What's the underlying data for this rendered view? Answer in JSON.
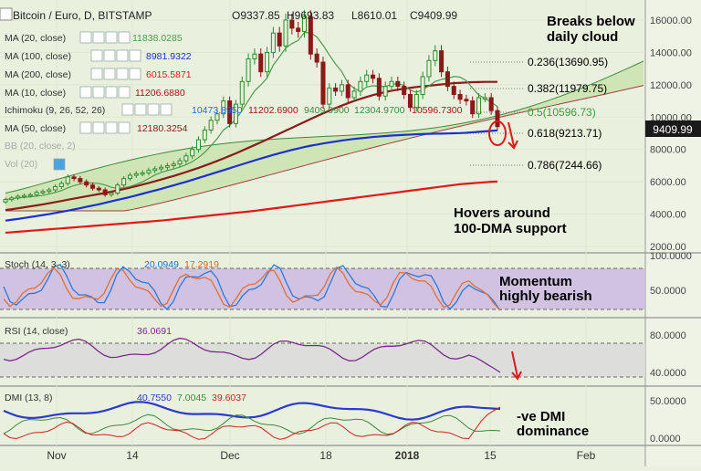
{
  "header": {
    "symbol": "Bitcoin / Euro, D, BITSTAMP",
    "ohlc": {
      "open": "O9337.85",
      "high": "H9693.83",
      "low": "L8610.01",
      "close": "C9409.99"
    }
  },
  "legend_main": [
    {
      "label": "MA (20, close)",
      "value": "11838.0285",
      "color": "#4f9a4f"
    },
    {
      "label": "MA (100, close)",
      "value": "8981.9322",
      "color": "#1e2fd0"
    },
    {
      "label": "MA (200, close)",
      "value": "6015.5871",
      "color": "#d02020"
    },
    {
      "label": "MA (10, close)",
      "value": "11206.6880",
      "color": "#a01818"
    },
    {
      "label": "Ichimoku (9, 26, 52, 26)",
      "value": "10473.8950",
      "value2": "11202.6900",
      "value3": "9409.9900",
      "value4": "12304.9700",
      "value5": "10596.7300"
    },
    {
      "label": "MA (50, close)",
      "value": "12180.3254",
      "color": "#8b1a1a"
    },
    {
      "label": "BB (20, close, 2)",
      "value": ""
    },
    {
      "label": "Vol (20)",
      "value": ""
    }
  ],
  "price_badge": "9409.99",
  "annotations": {
    "breaks": [
      "Breaks below",
      "daily cloud"
    ],
    "hovers": [
      "Hovers around",
      "100-DMA support"
    ],
    "momentum": [
      "Momentum",
      "highly bearish"
    ],
    "dmi": [
      "-ve DMI",
      "dominance"
    ]
  },
  "fib_levels": [
    {
      "label": "0.236(13690.95)",
      "color": "#000000"
    },
    {
      "label": "0.382(11979.75)",
      "color": "#000000"
    },
    {
      "label": "0.5(10596.73)",
      "color": "#3c9a3c"
    },
    {
      "label": "0.618(9213.71)",
      "color": "#000000"
    },
    {
      "label": "0.786(7244.66)",
      "color": "#000000"
    }
  ],
  "stoch": {
    "label": "Stoch (14, 3, 3)",
    "v1": "20.0949",
    "v2": "17.2919",
    "ticks": [
      "100.0000",
      "50.0000"
    ]
  },
  "rsi": {
    "label": "RSI (14, close)",
    "value": "36.0691",
    "ticks": [
      "80.0000",
      "40.0000"
    ]
  },
  "dmi_panel": {
    "label": "DMI (13, 8)",
    "v1": "40.7550",
    "v2": "7.0045",
    "v3": "39.6037",
    "ticks": [
      "50.0000",
      "0.0000"
    ]
  },
  "colors": {
    "background": "#e9f0dd",
    "candle_up": "#2e8b2e",
    "candle_down": "#8a1a1a",
    "ma100": "#1e2fd0",
    "ma200": "#e01818",
    "ma50": "#8b1a1a",
    "ma20": "#4f9a4f",
    "cloud": "#c5e2a7",
    "stoch_band": "#cdbde0",
    "rsi_band": "#dcdcdc",
    "annotation_arrow": "#e01818"
  },
  "chart_data": [
    {
      "type": "candlestick",
      "title": "Bitcoin / Euro, D, BITSTAMP",
      "x_tick_labels": [
        "Nov",
        "14",
        "Dec",
        "18",
        "2018",
        "15",
        "Feb"
      ],
      "y_tick_labels": [
        "16000.00",
        "14000.00",
        "12000.00",
        "10000.00",
        "8000.00",
        "6000.00",
        "4000.00",
        "2000.00"
      ],
      "ylim": [
        2000,
        17000
      ],
      "candles_close": [
        4900,
        5000,
        5100,
        5150,
        5200,
        5350,
        5400,
        5500,
        5700,
        5900,
        6300,
        6200,
        6000,
        5800,
        5600,
        5500,
        5200,
        5300,
        5800,
        6200,
        6400,
        6500,
        6550,
        6700,
        6800,
        6900,
        7000,
        7100,
        7300,
        7600,
        8000,
        8600,
        9200,
        9800,
        10200,
        11000,
        9600,
        10800,
        12200,
        13600,
        13900,
        12800,
        14000,
        15200,
        14400,
        16000,
        15500,
        15300,
        16200,
        13900,
        13400,
        10800,
        11800,
        11600,
        12000,
        11200,
        11600,
        12200,
        12600,
        12400,
        11300,
        11900,
        12200,
        11900,
        11400,
        10600,
        11400,
        12500,
        13500,
        14100,
        12800,
        11900,
        11400,
        11100,
        11000,
        10200,
        11200,
        11200,
        10400,
        9410
      ],
      "series": [
        {
          "name": "MA (100, close)",
          "values": [
            3600,
            3650,
            3700,
            3760,
            3820,
            3880,
            3940,
            4000,
            4070,
            4140,
            4210,
            4290,
            4370,
            4450,
            4530,
            4610,
            4700,
            4790,
            4880,
            4970,
            5060,
            5160,
            5260,
            5360,
            5460,
            5560,
            5670,
            5780,
            5890,
            6000,
            6120,
            6240,
            6360,
            6480,
            6600,
            6720,
            6840,
            6960,
            7080,
            7200,
            7320,
            7440,
            7550,
            7660,
            7770,
            7870,
            7970,
            8060,
            8150,
            8230,
            8300,
            8370,
            8430,
            8490,
            8550,
            8600,
            8650,
            8690,
            8730,
            8770,
            8800,
            8830,
            8860,
            8880,
            8900,
            8920,
            8940,
            8955,
            8965,
            8975,
            8980,
            8990,
            9000,
            9010,
            9030,
            9060,
            9090,
            9120,
            9150,
            9180
          ]
        },
        {
          "name": "MA (200, close)",
          "values": [
            2850,
            2880,
            2910,
            2940,
            2970,
            3000,
            3030,
            3060,
            3090,
            3120,
            3150,
            3180,
            3210,
            3240,
            3270,
            3300,
            3330,
            3360,
            3390,
            3420,
            3450,
            3480,
            3510,
            3540,
            3570,
            3600,
            3640,
            3680,
            3720,
            3760,
            3800,
            3840,
            3880,
            3920,
            3960,
            4000,
            4040,
            4080,
            4120,
            4160,
            4200,
            4250,
            4300,
            4350,
            4400,
            4450,
            4500,
            4550,
            4600,
            4650,
            4700,
            4750,
            4800,
            4850,
            4900,
            4950,
            5000,
            5050,
            5100,
            5150,
            5200,
            5250,
            5300,
            5350,
            5400,
            5450,
            5500,
            5550,
            5600,
            5650,
            5700,
            5750,
            5800,
            5850,
            5880,
            5910,
            5940,
            5970,
            6000,
            6015
          ]
        },
        {
          "name": "MA (50, close)",
          "values": [
            4250,
            4300,
            4360,
            4420,
            4480,
            4540,
            4600,
            4670,
            4740,
            4810,
            4890,
            4960,
            5030,
            5100,
            5170,
            5240,
            5310,
            5390,
            5470,
            5550,
            5640,
            5730,
            5830,
            5930,
            6030,
            6140,
            6250,
            6360,
            6480,
            6600,
            6730,
            6860,
            7000,
            7140,
            7290,
            7440,
            7600,
            7760,
            7930,
            8100,
            8270,
            8440,
            8620,
            8800,
            8980,
            9160,
            9340,
            9520,
            9700,
            9880,
            10060,
            10230,
            10400,
            10560,
            10710,
            10860,
            11000,
            11130,
            11250,
            11360,
            11460,
            11550,
            11630,
            11700,
            11760,
            11810,
            11860,
            11900,
            11940,
            11980,
            12020,
            12060,
            12100,
            12120,
            12140,
            12160,
            12170,
            12180,
            12180,
            12180
          ]
        }
      ]
    },
    {
      "type": "line",
      "title": "Stoch (14, 3, 3)",
      "ylim": [
        0,
        100
      ]
    },
    {
      "type": "line",
      "title": "RSI (14, close)",
      "ylim": [
        30,
        90
      ]
    },
    {
      "type": "line",
      "title": "DMI (13, 8)",
      "ylim": [
        0,
        60
      ]
    }
  ]
}
